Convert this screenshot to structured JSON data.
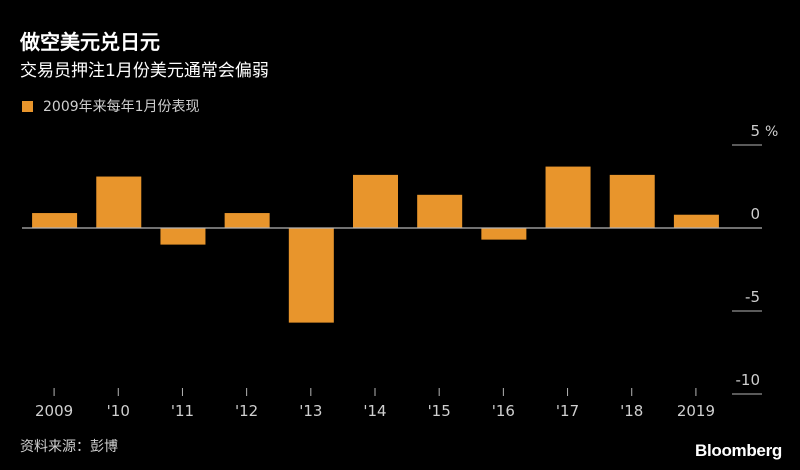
{
  "header": {
    "title": "做空美元兑日元",
    "subtitle": "交易员押注1月份美元通常会偏弱"
  },
  "legend": {
    "label": "2009年来每年1月份表现",
    "color": "#e8952c"
  },
  "footer": {
    "source": "资料来源：彭博",
    "brand": "Bloomberg"
  },
  "chart_data": {
    "type": "bar",
    "title": "做空美元兑日元",
    "subtitle": "交易员押注1月份美元通常会偏弱",
    "series": [
      {
        "name": "2009年来每年1月份表现",
        "values": [
          0.9,
          3.1,
          -1.0,
          0.9,
          -5.7,
          3.2,
          2.0,
          -0.7,
          3.7,
          3.2,
          0.8
        ]
      }
    ],
    "categories": [
      "2009",
      "'10",
      "'11",
      "'12",
      "'13",
      "'14",
      "'15",
      "'16",
      "'17",
      "'18",
      "2019"
    ],
    "yticks": [
      5,
      0,
      -5,
      -10
    ],
    "yticklabels": [
      "5",
      "0",
      "-5",
      "-10"
    ],
    "yunit": "%",
    "ylim": [
      -10,
      5
    ],
    "legend_position": "top-left",
    "grid": false,
    "bar_color": "#e8952c"
  }
}
